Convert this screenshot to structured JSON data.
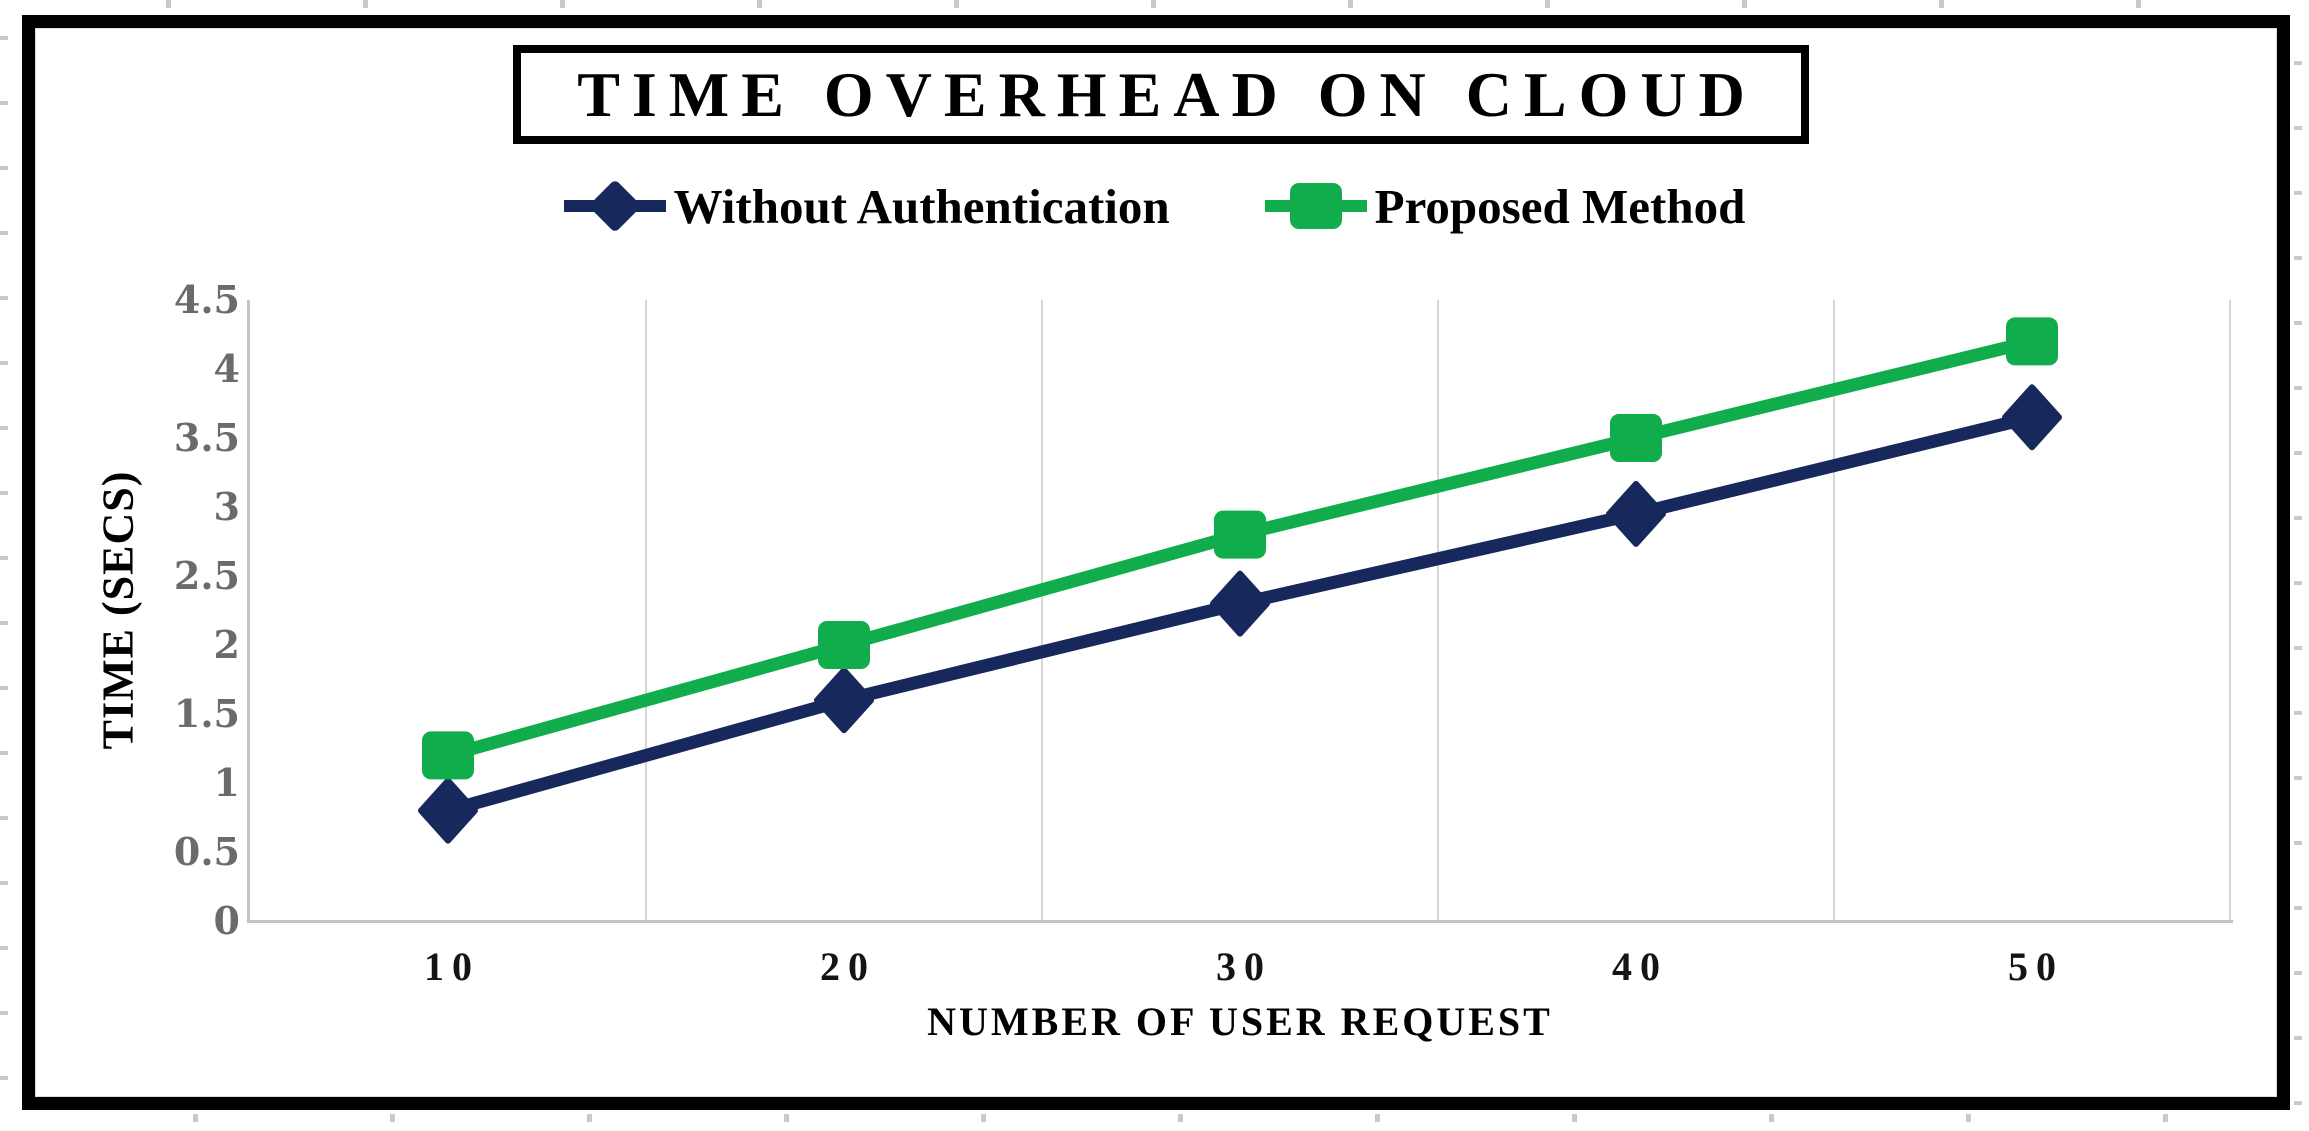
{
  "figure": {
    "title": "TIME OVERHEAD ON CLOUD",
    "x_axis_title": "NUMBER OF USER REQUEST",
    "y_axis_title": "TIME (SECS)"
  },
  "chart_data": {
    "type": "line",
    "title": "TIME OVERHEAD ON CLOUD",
    "xlabel": "NUMBER OF USER REQUEST",
    "ylabel": "TIME (SECS)",
    "x": [
      10,
      20,
      30,
      40,
      50
    ],
    "x_tick_labels": [
      "10",
      "20",
      "30",
      "40",
      "50"
    ],
    "y_ticks": [
      0,
      0.5,
      1,
      1.5,
      2,
      2.5,
      3,
      3.5,
      4,
      4.5
    ],
    "y_tick_labels": [
      "0",
      "0.5",
      "1",
      "1.5",
      "2",
      "2.5",
      "3",
      "3.5",
      "4",
      "4.5"
    ],
    "ylim": [
      0,
      4.5
    ],
    "grid": "vertical-only",
    "legend_position": "top",
    "series": [
      {
        "name": "Without Authentication",
        "marker": "diamond",
        "color": "#17285c",
        "values": [
          0.8,
          1.6,
          2.3,
          2.95,
          3.65
        ]
      },
      {
        "name": "Proposed Method",
        "marker": "square",
        "color": "#11ad4c",
        "values": [
          1.2,
          2.0,
          2.8,
          3.5,
          4.2
        ]
      }
    ]
  },
  "colors": {
    "series_without_authentication": "#17285c",
    "series_proposed_method": "#11ad4c",
    "gridline": "#d6d6d6",
    "axis_line": "#c4c4c4",
    "y_tick_label": "#6b6b6b",
    "x_tick_label": "#141414",
    "frame": "#000000",
    "worksheet_stub": "#c9c9c9",
    "background": "#ffffff"
  }
}
